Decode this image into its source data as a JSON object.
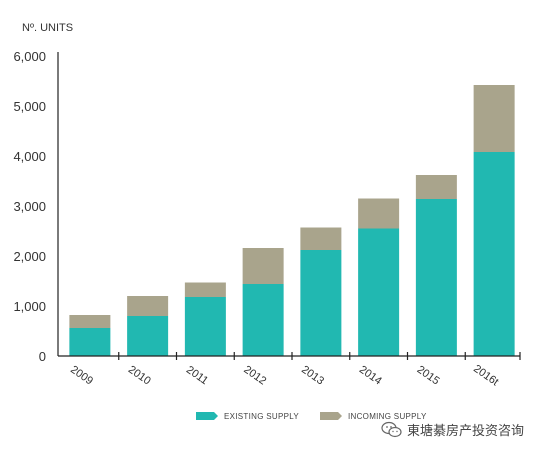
{
  "chart_data": {
    "type": "bar",
    "stacked": true,
    "ylabel": "Nº. UNITS",
    "yticks": [
      "0",
      "1,000",
      "2,000",
      "3,000",
      "4,000",
      "5,000",
      "6,000"
    ],
    "ylim": [
      0,
      6000
    ],
    "categories": [
      "2009",
      "2010",
      "2011",
      "2012",
      "2013",
      "2014",
      "2015",
      "2016t"
    ],
    "series": [
      {
        "name": "EXISTING SUPPLY",
        "color": "#21b8b1",
        "values": [
          560,
          800,
          1180,
          1440,
          2120,
          2550,
          3140,
          4080
        ]
      },
      {
        "name": "INCOMING SUPPLY",
        "color": "#a9a48c",
        "values": [
          260,
          400,
          290,
          720,
          450,
          600,
          480,
          1340
        ]
      }
    ],
    "legend_position": "bottom",
    "grid": false
  },
  "watermark": {
    "text": "東塘綦房产投资咨询",
    "icon": "wechat-icon"
  }
}
